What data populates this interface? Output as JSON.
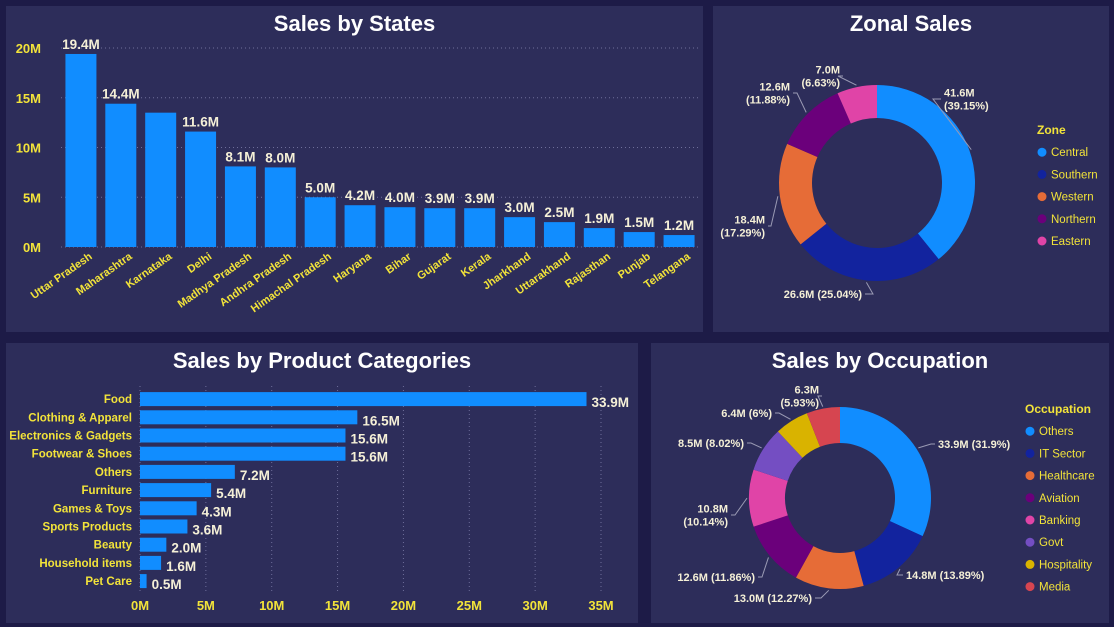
{
  "charts": {
    "states": {
      "title": "Sales by States",
      "chart_data": {
        "type": "bar",
        "title": "Sales by States",
        "categories": [
          "Uttar Pradesh",
          "Maharashtra",
          "Karnataka",
          "Delhi",
          "Madhya Pradesh",
          "Andhra Pradesh",
          "Himachal Pradesh",
          "Haryana",
          "Bihar",
          "Gujarat",
          "Kerala",
          "Jharkhand",
          "Uttarakhand",
          "Rajasthan",
          "Punjab",
          "Telangana"
        ],
        "values": [
          19.4,
          14.4,
          13.5,
          11.6,
          8.1,
          8.0,
          5.0,
          4.2,
          4.0,
          3.9,
          3.9,
          3.0,
          2.5,
          1.9,
          1.5,
          1.2
        ],
        "data_labels": [
          "19.4M",
          "14.4M",
          "",
          "11.6M",
          "8.1M",
          "8.0M",
          "5.0M",
          "4.2M",
          "4.0M",
          "3.9M",
          "3.9M",
          "3.0M",
          "2.5M",
          "1.9M",
          "1.5M",
          "1.2M"
        ],
        "unit": "M",
        "ylim": [
          0,
          20
        ],
        "yticks": [
          0,
          5,
          10,
          15,
          20
        ],
        "ytick_labels": [
          "0M",
          "5M",
          "10M",
          "15M",
          "20M"
        ],
        "grid": true,
        "xlabel": "",
        "ylabel": ""
      }
    },
    "zonal": {
      "title": "Zonal Sales",
      "chart_data": {
        "type": "pie",
        "style": "donut",
        "title": "Zonal Sales",
        "legend_title": "Zone",
        "legend_position": "right",
        "categories": [
          "Central",
          "Southern",
          "Western",
          "Northern",
          "Eastern"
        ],
        "values": [
          41.6,
          26.6,
          18.4,
          12.6,
          7.0
        ],
        "percents": [
          39.15,
          25.04,
          17.29,
          11.88,
          6.63
        ],
        "label_lines": [
          [
            "41.6M",
            "(39.15%)"
          ],
          [
            "26.6M (25.04%)"
          ],
          [
            "18.4M",
            "(17.29%)"
          ],
          [
            "12.6M",
            "(11.88%)"
          ],
          [
            "7.0M",
            "(6.63%)"
          ]
        ],
        "colors": [
          "#118dff",
          "#12239e",
          "#e66c37",
          "#6b007b",
          "#e044a7"
        ]
      }
    },
    "categories": {
      "title": "Sales by Product Categories",
      "chart_data": {
        "type": "bar",
        "orientation": "horizontal",
        "title": "Sales by Product Categories",
        "categories": [
          "Food",
          "Clothing & Apparel",
          "Electronics & Gadgets",
          "Footwear & Shoes",
          "Others",
          "Furniture",
          "Games & Toys",
          "Sports Products",
          "Beauty",
          "Household items",
          "Pet Care"
        ],
        "values": [
          33.9,
          16.5,
          15.6,
          15.6,
          7.2,
          5.4,
          4.3,
          3.6,
          2.0,
          1.6,
          0.5
        ],
        "data_labels": [
          "33.9M",
          "16.5M",
          "15.6M",
          "15.6M",
          "7.2M",
          "5.4M",
          "4.3M",
          "3.6M",
          "2.0M",
          "1.6M",
          "0.5M"
        ],
        "xlim": [
          0,
          35
        ],
        "xticks": [
          0,
          5,
          10,
          15,
          20,
          25,
          30,
          35
        ],
        "xtick_labels": [
          "0M",
          "5M",
          "10M",
          "15M",
          "20M",
          "25M",
          "30M",
          "35M"
        ],
        "grid": true,
        "xlabel": "",
        "ylabel": ""
      }
    },
    "occupation": {
      "title": "Sales by Occupation",
      "chart_data": {
        "type": "pie",
        "style": "donut",
        "title": "Sales by Occupation",
        "legend_title": "Occupation",
        "legend_position": "right",
        "categories": [
          "Others",
          "IT Sector",
          "Healthcare",
          "Aviation",
          "Banking",
          "Govt",
          "Hospitality",
          "Media"
        ],
        "values": [
          33.9,
          14.8,
          13.0,
          12.6,
          10.8,
          8.5,
          6.4,
          6.3
        ],
        "percents": [
          31.9,
          13.89,
          12.27,
          11.86,
          10.14,
          8.02,
          6.0,
          5.93
        ],
        "label_lines": [
          [
            "33.9M (31.9%)"
          ],
          [
            "14.8M (13.89%)"
          ],
          [
            "13.0M (12.27%)"
          ],
          [
            "12.6M (11.86%)"
          ],
          [
            "10.8M",
            "(10.14%)"
          ],
          [
            "8.5M (8.02%)"
          ],
          [
            "6.4M (6%)"
          ],
          [
            "6.3M",
            "(5.93%)"
          ]
        ],
        "colors": [
          "#118dff",
          "#12239e",
          "#e66c37",
          "#6b007b",
          "#e044a7",
          "#744ec2",
          "#d9b300",
          "#d64550"
        ]
      }
    }
  },
  "theme": {
    "bar_color": "#118dff",
    "label_color": "#f5f0d7",
    "axis_label_color": "#f2e33a",
    "panel_bg": "#2d2d5a",
    "page_bg": "#1d1b47"
  }
}
